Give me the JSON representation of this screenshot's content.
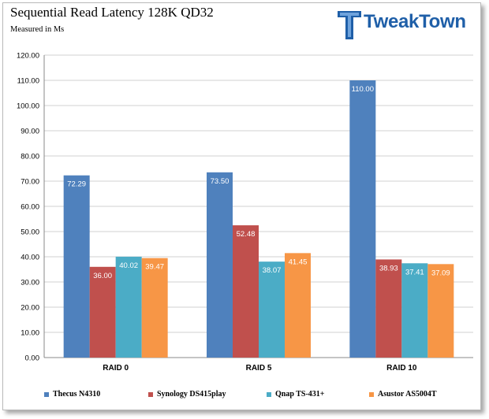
{
  "header": {
    "title": "Sequential Read Latency 128K QD32",
    "subtitle": "Measured in Ms",
    "logo_text": "TweakTown"
  },
  "colors": {
    "thecus": "#4f81bd",
    "synology": "#c0504d",
    "qnap": "#4bacc6",
    "asustor": "#f79646",
    "grid": "#d0d0d0",
    "logo": "#1f5fa8"
  },
  "chart_data": {
    "type": "bar",
    "title": "Sequential Read Latency 128K QD32",
    "subtitle": "Measured in Ms",
    "categories": [
      "RAID 0",
      "RAID 5",
      "RAID 10"
    ],
    "series": [
      {
        "name": "Thecus N4310",
        "values": [
          72.29,
          73.5,
          110.0
        ],
        "labels": [
          "72.29",
          "73.50",
          "110.00"
        ]
      },
      {
        "name": "Synology DS415play",
        "values": [
          36.0,
          52.48,
          38.93
        ],
        "labels": [
          "36.00",
          "52.48",
          "38.93"
        ]
      },
      {
        "name": "Qnap TS-431+",
        "values": [
          40.02,
          38.07,
          37.41
        ],
        "labels": [
          "40.02",
          "38.07",
          "37.41"
        ]
      },
      {
        "name": "Asustor AS5004T",
        "values": [
          39.47,
          41.45,
          37.09
        ],
        "labels": [
          "39.47",
          "41.45",
          "37.09"
        ]
      }
    ],
    "ylim": [
      0,
      120
    ],
    "yticks": [
      "0.00",
      "10.00",
      "20.00",
      "30.00",
      "40.00",
      "50.00",
      "60.00",
      "70.00",
      "80.00",
      "90.00",
      "100.00",
      "110.00",
      "120.00"
    ],
    "grid": true,
    "legend_position": "bottom"
  }
}
